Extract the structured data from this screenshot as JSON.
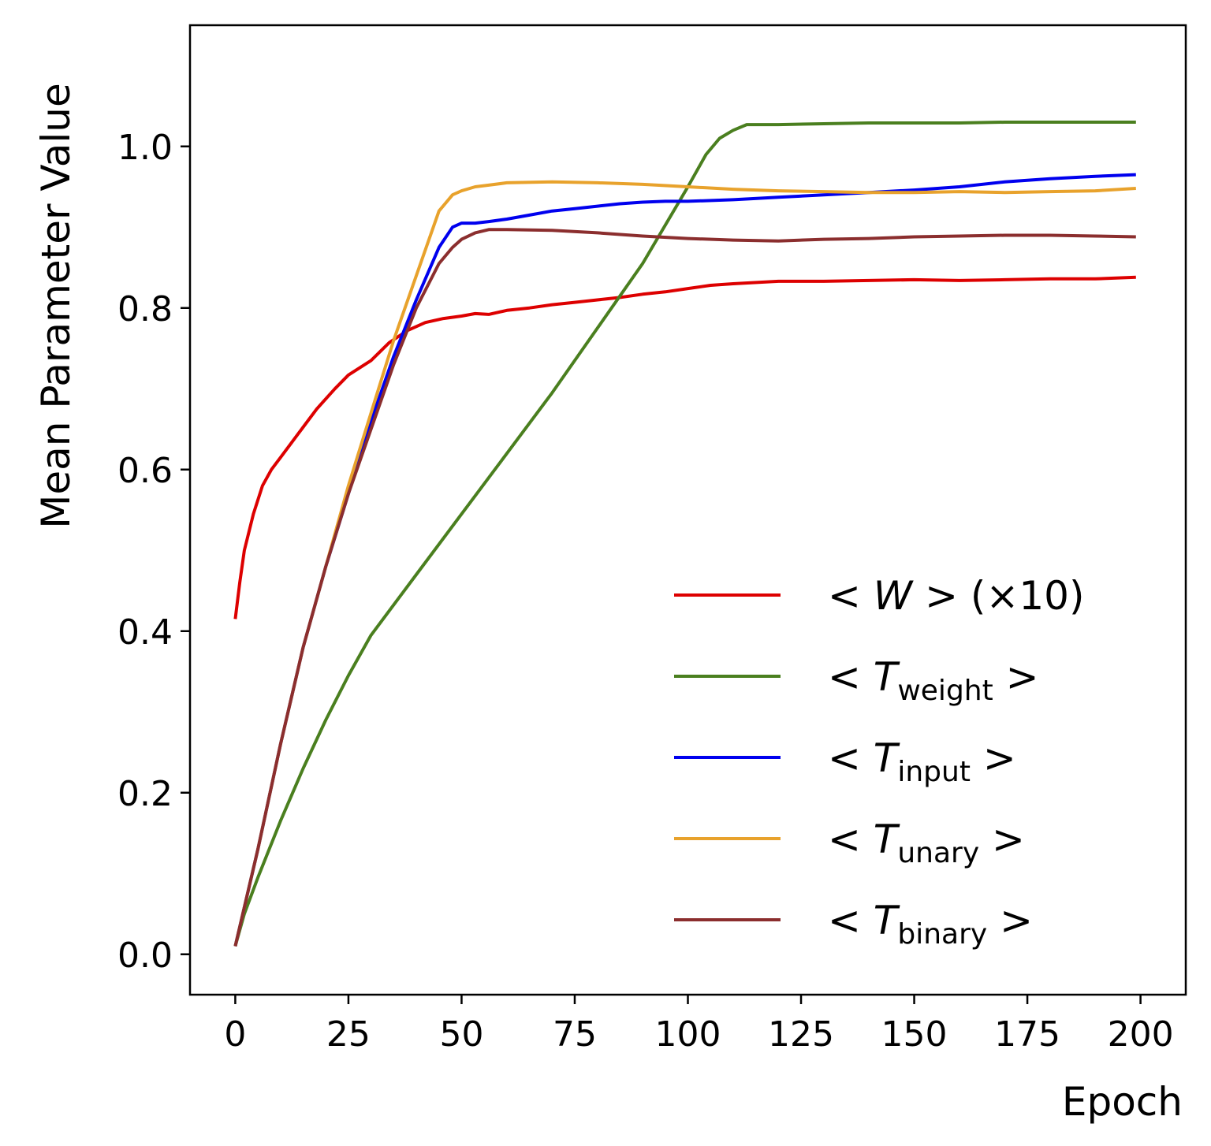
{
  "chart_data": {
    "type": "line",
    "title": "",
    "xlabel": "Epoch",
    "ylabel": "Mean Parameter Value",
    "xlim": [
      -10,
      210
    ],
    "ylim": [
      -0.05,
      1.15
    ],
    "xticks": [
      0,
      25,
      50,
      75,
      100,
      125,
      150,
      175,
      200
    ],
    "xtick_labels": [
      "0",
      "25",
      "50",
      "75",
      "100",
      "125",
      "150",
      "175",
      "200"
    ],
    "yticks": [
      0.0,
      0.2,
      0.4,
      0.6,
      0.8,
      1.0
    ],
    "ytick_labels": [
      "0.0",
      "0.2",
      "0.4",
      "0.6",
      "0.8",
      "1.0"
    ],
    "grid": false,
    "legend_position": "bottom-right",
    "series": [
      {
        "name": "<W> (×10)",
        "legend": {
          "prefix": "< ",
          "symbol": "W",
          "subscript": "",
          "suffix": " > (×10)"
        },
        "color": "#dd0000",
        "x": [
          0,
          1,
          2,
          4,
          6,
          8,
          10,
          14,
          18,
          22,
          25,
          30,
          34,
          38,
          42,
          46,
          50,
          53,
          56,
          60,
          65,
          70,
          75,
          80,
          85,
          90,
          95,
          100,
          105,
          110,
          120,
          130,
          140,
          150,
          160,
          170,
          180,
          190,
          199
        ],
        "y": [
          0.415,
          0.46,
          0.5,
          0.545,
          0.58,
          0.6,
          0.615,
          0.645,
          0.675,
          0.7,
          0.717,
          0.735,
          0.757,
          0.772,
          0.782,
          0.787,
          0.79,
          0.793,
          0.792,
          0.797,
          0.8,
          0.804,
          0.807,
          0.81,
          0.813,
          0.817,
          0.82,
          0.824,
          0.828,
          0.83,
          0.833,
          0.833,
          0.834,
          0.835,
          0.834,
          0.835,
          0.836,
          0.836,
          0.838
        ]
      },
      {
        "name": "<T_weight>",
        "legend": {
          "prefix": "< ",
          "symbol": "T",
          "subscript": "weight",
          "suffix": " >"
        },
        "color": "#4a7f1f",
        "x": [
          0,
          2,
          5,
          10,
          15,
          20,
          25,
          30,
          40,
          50,
          60,
          70,
          80,
          90,
          100,
          104,
          107,
          110,
          113,
          116,
          120,
          130,
          140,
          150,
          160,
          170,
          180,
          190,
          199
        ],
        "y": [
          0.01,
          0.05,
          0.095,
          0.165,
          0.23,
          0.29,
          0.345,
          0.395,
          0.47,
          0.545,
          0.62,
          0.695,
          0.775,
          0.855,
          0.95,
          0.99,
          1.01,
          1.02,
          1.027,
          1.027,
          1.027,
          1.028,
          1.029,
          1.029,
          1.029,
          1.03,
          1.03,
          1.03,
          1.03
        ]
      },
      {
        "name": "<T_input>",
        "legend": {
          "prefix": "< ",
          "symbol": "T",
          "subscript": "input",
          "suffix": " >"
        },
        "color": "#0000ee",
        "x": [
          0,
          5,
          10,
          15,
          20,
          25,
          30,
          35,
          40,
          45,
          48,
          50,
          53,
          56,
          60,
          65,
          70,
          75,
          80,
          85,
          90,
          95,
          100,
          110,
          120,
          130,
          140,
          150,
          160,
          170,
          180,
          190,
          199
        ],
        "y": [
          0.01,
          0.13,
          0.26,
          0.38,
          0.48,
          0.57,
          0.66,
          0.74,
          0.81,
          0.875,
          0.9,
          0.905,
          0.905,
          0.907,
          0.91,
          0.915,
          0.92,
          0.923,
          0.926,
          0.929,
          0.931,
          0.932,
          0.932,
          0.934,
          0.937,
          0.94,
          0.943,
          0.946,
          0.95,
          0.956,
          0.96,
          0.963,
          0.965
        ]
      },
      {
        "name": "<T_unary>",
        "legend": {
          "prefix": "< ",
          "symbol": "T",
          "subscript": "unary",
          "suffix": " >"
        },
        "color": "#e8a22c",
        "x": [
          0,
          5,
          10,
          15,
          20,
          25,
          30,
          35,
          40,
          45,
          48,
          50,
          53,
          56,
          60,
          70,
          80,
          90,
          100,
          110,
          120,
          130,
          140,
          150,
          160,
          170,
          180,
          190,
          199
        ],
        "y": [
          0.01,
          0.13,
          0.26,
          0.38,
          0.48,
          0.58,
          0.67,
          0.76,
          0.84,
          0.92,
          0.94,
          0.945,
          0.95,
          0.952,
          0.955,
          0.956,
          0.955,
          0.953,
          0.95,
          0.947,
          0.945,
          0.944,
          0.943,
          0.943,
          0.944,
          0.943,
          0.944,
          0.945,
          0.948
        ]
      },
      {
        "name": "<T_binary>",
        "legend": {
          "prefix": "< ",
          "symbol": "T",
          "subscript": "binary",
          "suffix": " >"
        },
        "color": "#8b2e2e",
        "x": [
          0,
          5,
          10,
          15,
          20,
          25,
          30,
          35,
          40,
          45,
          48,
          50,
          53,
          56,
          60,
          70,
          80,
          90,
          100,
          110,
          120,
          130,
          140,
          150,
          160,
          170,
          180,
          190,
          199
        ],
        "y": [
          0.01,
          0.13,
          0.26,
          0.38,
          0.48,
          0.57,
          0.65,
          0.73,
          0.8,
          0.855,
          0.875,
          0.885,
          0.893,
          0.897,
          0.897,
          0.896,
          0.893,
          0.889,
          0.886,
          0.884,
          0.883,
          0.885,
          0.886,
          0.888,
          0.889,
          0.89,
          0.89,
          0.889,
          0.888
        ]
      }
    ]
  }
}
